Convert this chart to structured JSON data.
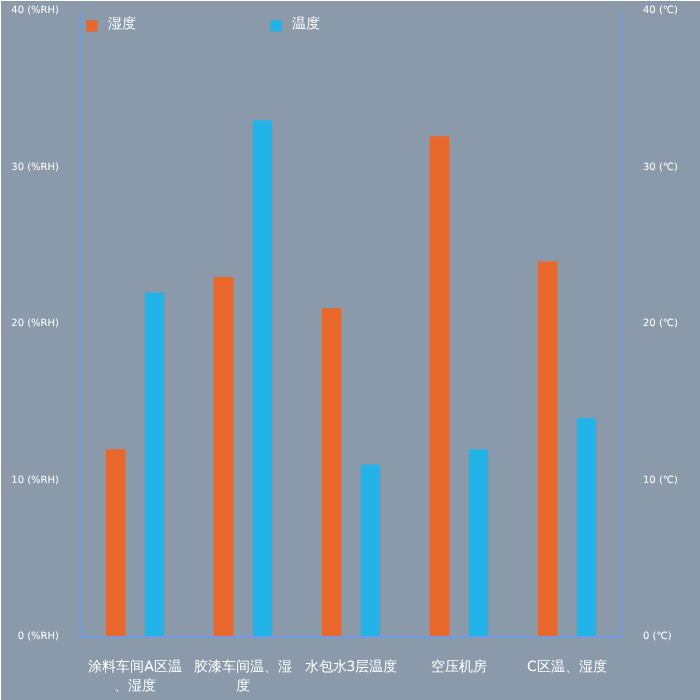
{
  "chart_data": {
    "type": "bar",
    "categories": [
      "涂料车间A区温、湿度",
      "胶漆车间温、湿度",
      "水包水3层温度",
      "空压机房",
      "C区温、湿度"
    ],
    "series": [
      {
        "name": "湿度",
        "color": "#e8672a",
        "values": [
          12,
          23,
          21,
          32,
          24
        ]
      },
      {
        "name": "温度",
        "color": "#22b4e8",
        "values": [
          22,
          33,
          11,
          12,
          14
        ],
        "axis": "y2"
      }
    ],
    "ylim": [
      0,
      40
    ],
    "yticks": [
      {
        "value": 0,
        "label": "0 (%RH)"
      },
      {
        "value": 10,
        "label": "10 (%RH)"
      },
      {
        "value": 20,
        "label": "20 (%RH)"
      },
      {
        "value": 30,
        "label": "30 (%RH)"
      },
      {
        "value": 40,
        "label": "40 (%RH)"
      }
    ],
    "y2lim": [
      0,
      40
    ],
    "y2ticks": [
      {
        "value": 0,
        "label": "0 (℃)"
      },
      {
        "value": 10,
        "label": "10 (℃)"
      },
      {
        "value": 20,
        "label": "20 (℃)"
      },
      {
        "value": 30,
        "label": "30 (℃)"
      },
      {
        "value": 40,
        "label": "40 (℃)"
      }
    ],
    "grid": false,
    "legend": "top left"
  }
}
